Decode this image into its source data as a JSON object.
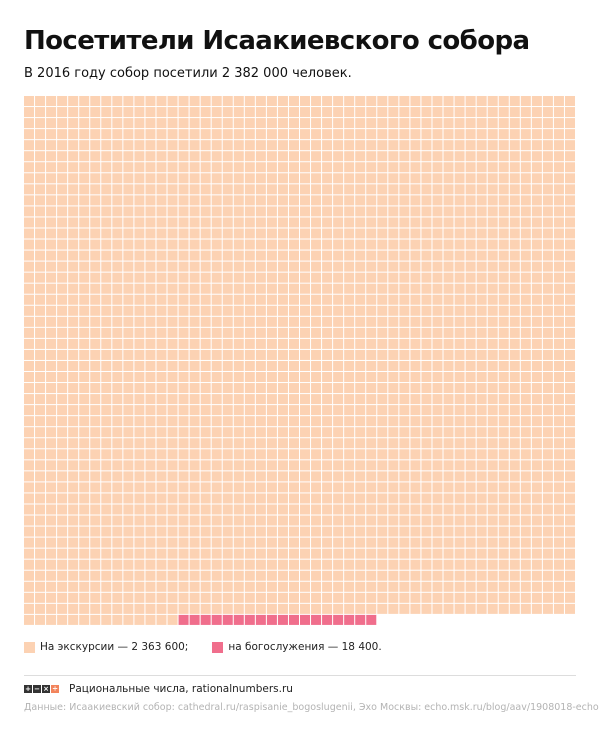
{
  "title": "Посетители Исаакиевского собора",
  "subtitle": "В 2016 году собор посетили 2 382 000 человек.",
  "legend": {
    "excursions_label": "На экскурсии — 2 363 600;",
    "services_label": "на богослужения — 18 400."
  },
  "colors": {
    "excursions": "#fcd2b3",
    "services": "#f06e8c",
    "grid_line": "#ffffff",
    "logo": [
      "#333333",
      "#333333",
      "#333333",
      "#f2845c"
    ]
  },
  "footer": {
    "logo_glyphs": [
      "+",
      "−",
      "×",
      "÷"
    ],
    "brand": "Рациональные числа, rationalnumbers.ru",
    "source": "Данные: Исаакиевский собор: cathedral.ru/raspisanie_bogoslugenii, Эхо Москвы: echo.msk.ru/blog/aav/1908018-echo"
  },
  "chart_data": {
    "type": "waffle",
    "title": "Посетители Исаакиевского собора",
    "subtitle": "В 2016 году собор посетили 2 382 000 человек.",
    "columns": 50,
    "total": 2382000,
    "cells_total": 2382,
    "people_per_cell": 1000,
    "series": [
      {
        "name": "На экскурсии",
        "value": 2363600,
        "cells": 2364,
        "color": "#fcd2b3"
      },
      {
        "name": "на богослужения",
        "value": 18400,
        "cells": 18,
        "color": "#f06e8c"
      }
    ],
    "legend_position": "bottom-left"
  }
}
